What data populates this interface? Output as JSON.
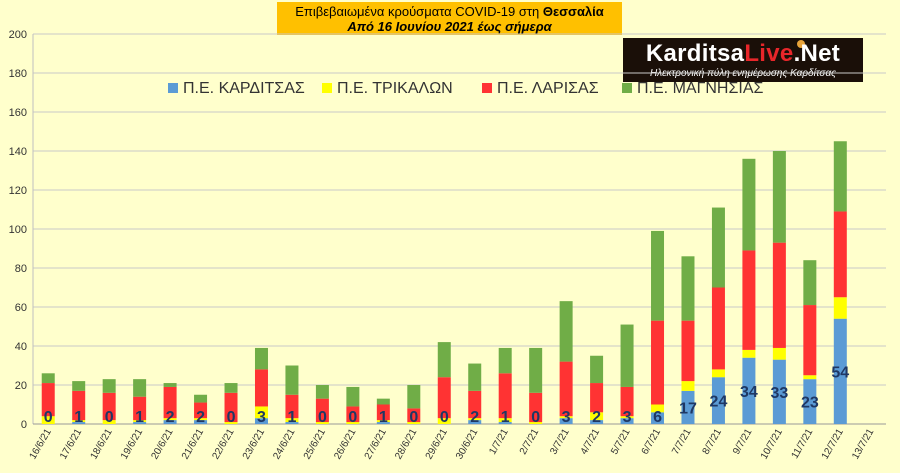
{
  "header": {
    "title_prefix": "Επιβεβαιωμένα κρούσματα COVID-19 στη ",
    "title_region": "Θεσσαλία",
    "subtitle": "Από 16 Ιουνίου 2021 έως σήμερα"
  },
  "logo": {
    "name_part1": "Karditsa",
    "name_part2": "Live",
    "name_part3": ".Net",
    "tagline": "Ηλεκτρονική πύλη ενημέρωσης Καρδίτσας"
  },
  "chart_data": {
    "type": "bar",
    "stacked": true,
    "ylim": [
      0,
      200
    ],
    "ytick_step": 20,
    "grid": true,
    "legend_position": "top",
    "categories": [
      "16/6/21",
      "17/6/21",
      "18/6/21",
      "19/6/21",
      "20/6/21",
      "21/6/21",
      "22/6/21",
      "23/6/21",
      "24/6/21",
      "25/6/21",
      "26/6/21",
      "27/6/21",
      "28/6/21",
      "29/6/21",
      "30/6/21",
      "1/7/21",
      "2/7/21",
      "3/7/21",
      "4/7/21",
      "5/7/21",
      "6/7/21",
      "7/7/21",
      "8/7/21",
      "9/7/21",
      "10/7/21",
      "11/7/21",
      "12/7/21",
      "13/7/21"
    ],
    "series": [
      {
        "name": "Π.Ε. ΚΑΡΔΙΤΣΑΣ",
        "color": "#5B9BD5",
        "values": [
          0,
          1,
          0,
          1,
          2,
          2,
          0,
          3,
          1,
          0,
          0,
          1,
          0,
          0,
          2,
          1,
          0,
          3,
          2,
          3,
          6,
          17,
          24,
          34,
          33,
          23,
          54,
          0
        ]
      },
      {
        "name": "Π.Ε. ΤΡΙΚΑΛΩΝ",
        "color": "#FFFF00",
        "values": [
          4,
          1,
          2,
          1,
          1,
          1,
          1,
          6,
          2,
          1,
          1,
          1,
          1,
          3,
          1,
          2,
          1,
          1,
          4,
          1,
          4,
          5,
          4,
          4,
          6,
          2,
          11,
          0
        ]
      },
      {
        "name": "Π.Ε. ΛΑΡΙΣΑΣ",
        "color": "#FF3333",
        "values": [
          17,
          15,
          14,
          12,
          16,
          8,
          15,
          19,
          12,
          12,
          8,
          8,
          7,
          21,
          14,
          23,
          15,
          28,
          15,
          15,
          43,
          31,
          42,
          51,
          54,
          36,
          44,
          0
        ]
      },
      {
        "name": "Π.Ε. ΜΑΓΝΗΣΙΑΣ",
        "color": "#70AD47",
        "values": [
          5,
          5,
          7,
          9,
          2,
          4,
          5,
          11,
          15,
          7,
          10,
          3,
          12,
          18,
          14,
          13,
          23,
          31,
          14,
          32,
          46,
          33,
          41,
          47,
          47,
          23,
          36,
          0
        ]
      }
    ],
    "data_labels": [
      "0",
      "1",
      "0",
      "1",
      "2",
      "2",
      "0",
      "3",
      "1",
      "0",
      "0",
      "1",
      "0",
      "0",
      "2",
      "1",
      "0",
      "3",
      "2",
      "3",
      "6",
      "17",
      "24",
      "34",
      "33",
      "23",
      "54",
      ""
    ],
    "background": "#FFFFCC",
    "label_color": "#1F3864"
  }
}
